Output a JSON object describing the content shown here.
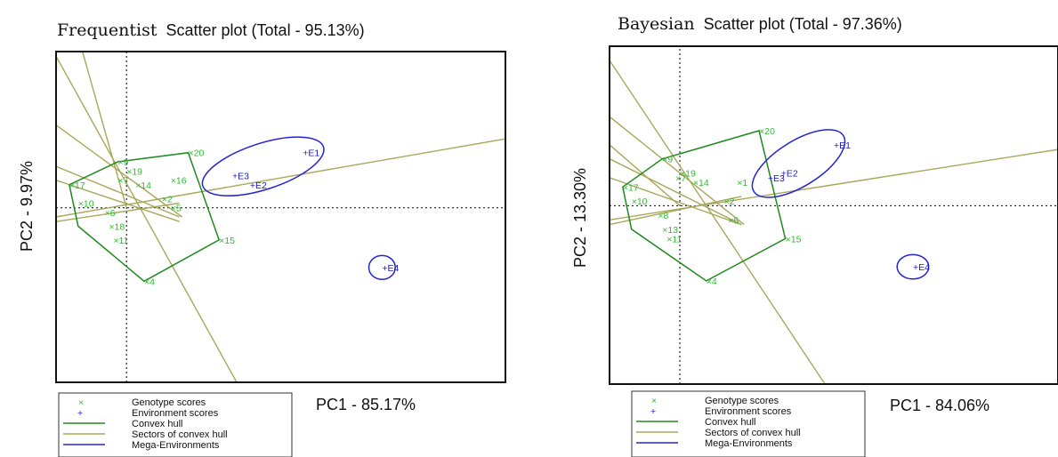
{
  "colors": {
    "genotype": "#2ebd2e",
    "environment": "#1b1bc4",
    "hull": "#1f8a1f",
    "sector": "#a9a85a",
    "mega": "#2323d8",
    "frame": "#111111"
  },
  "chart_data": [
    {
      "type": "scatter",
      "title_main": "Frequentist",
      "title_sub": "Scatter plot (Total - 95.13%)",
      "xlabel": "PC1 - 85.17%",
      "ylabel": "PC2 - 9.97%",
      "xlim": [
        -0.8,
        4.3
      ],
      "ylim": [
        -1.9,
        1.7
      ],
      "grid": false,
      "legend_position": "bottom-left",
      "legend": [
        "Genotype scores",
        "Environment scores",
        "Convex hull",
        "Sectors of convex hull",
        "Mega-Environments"
      ],
      "genotypes": [
        {
          "label": "20",
          "x": 0.7,
          "y": 0.6
        },
        {
          "label": "9",
          "x": -0.1,
          "y": 0.5
        },
        {
          "label": "19",
          "x": 0.0,
          "y": 0.4
        },
        {
          "label": "7",
          "x": -0.1,
          "y": 0.3
        },
        {
          "label": "14",
          "x": 0.1,
          "y": 0.25
        },
        {
          "label": "16",
          "x": 0.5,
          "y": 0.3
        },
        {
          "label": "2",
          "x": 0.4,
          "y": 0.1
        },
        {
          "label": "5",
          "x": 0.5,
          "y": 0.0
        },
        {
          "label": "17",
          "x": -0.65,
          "y": 0.25
        },
        {
          "label": "10",
          "x": -0.55,
          "y": 0.05
        },
        {
          "label": "6",
          "x": -0.25,
          "y": -0.05
        },
        {
          "label": "18",
          "x": -0.2,
          "y": -0.2
        },
        {
          "label": "11",
          "x": -0.15,
          "y": -0.35
        },
        {
          "label": "15",
          "x": 1.05,
          "y": -0.35
        },
        {
          "label": "4",
          "x": 0.2,
          "y": -0.8
        }
      ],
      "environments": [
        {
          "label": "E1",
          "x": 2.0,
          "y": 0.6
        },
        {
          "label": "E3",
          "x": 1.2,
          "y": 0.35
        },
        {
          "label": "E2",
          "x": 1.4,
          "y": 0.25
        },
        {
          "label": "E4",
          "x": 2.9,
          "y": -0.65
        }
      ],
      "hull": [
        [
          0.7,
          0.6
        ],
        [
          1.05,
          -0.35
        ],
        [
          0.2,
          -0.8
        ],
        [
          -0.55,
          -0.2
        ],
        [
          -0.65,
          0.25
        ],
        [
          -0.1,
          0.5
        ]
      ],
      "sectors": [
        [
          [
            -0.8,
            1.65
          ],
          [
            1.25,
            -1.9
          ]
        ],
        [
          [
            -0.8,
            0.9
          ],
          [
            0.63,
            -0.1
          ]
        ],
        [
          [
            -0.8,
            0.45
          ],
          [
            0.6,
            -0.1
          ]
        ],
        [
          [
            -0.8,
            0.3
          ],
          [
            0.6,
            -0.15
          ]
        ],
        [
          [
            -0.8,
            -0.15
          ],
          [
            0.6,
            0.05
          ]
        ],
        [
          [
            -0.8,
            -0.1
          ],
          [
            4.3,
            0.75
          ]
        ],
        [
          [
            -0.5,
            1.7
          ],
          [
            0.0,
            0.0
          ]
        ]
      ],
      "mega_environments": [
        {
          "cx": 1.55,
          "cy": 0.45,
          "rx": 0.72,
          "ry": 0.25,
          "angle_deg": 18
        },
        {
          "cx": 2.9,
          "cy": -0.65,
          "rx": 0.15,
          "ry": 0.13,
          "angle_deg": 0
        }
      ]
    },
    {
      "type": "scatter",
      "title_main": "Bayesian",
      "title_sub": "Scatter plot (Total - 97.36%)",
      "xlabel": "PC1 - 84.06%",
      "ylabel": "PC2 - 13.30%",
      "xlim": [
        -0.8,
        4.3
      ],
      "ylim": [
        -1.9,
        1.7
      ],
      "grid": false,
      "legend_position": "bottom-left",
      "legend": [
        "Genotype scores",
        "Environment scores",
        "Convex hull",
        "Sectors of convex hull",
        "Mega-Environments"
      ],
      "genotypes": [
        {
          "label": "20",
          "x": 0.9,
          "y": 0.8
        },
        {
          "label": "9",
          "x": -0.2,
          "y": 0.5
        },
        {
          "label": "19",
          "x": 0.0,
          "y": 0.35
        },
        {
          "label": "7",
          "x": -0.05,
          "y": 0.3
        },
        {
          "label": "14",
          "x": 0.15,
          "y": 0.25
        },
        {
          "label": "1",
          "x": 0.65,
          "y": 0.25
        },
        {
          "label": "2",
          "x": 0.5,
          "y": 0.05
        },
        {
          "label": "5",
          "x": 0.55,
          "y": -0.15
        },
        {
          "label": "17",
          "x": -0.65,
          "y": 0.2
        },
        {
          "label": "10",
          "x": -0.55,
          "y": 0.05
        },
        {
          "label": "8",
          "x": -0.25,
          "y": -0.1
        },
        {
          "label": "13",
          "x": -0.2,
          "y": -0.25
        },
        {
          "label": "11",
          "x": -0.15,
          "y": -0.35
        },
        {
          "label": "15",
          "x": 1.2,
          "y": -0.35
        },
        {
          "label": "4",
          "x": 0.3,
          "y": -0.8
        }
      ],
      "environments": [
        {
          "label": "E1",
          "x": 1.75,
          "y": 0.65
        },
        {
          "label": "E3",
          "x": 1.0,
          "y": 0.3
        },
        {
          "label": "E2",
          "x": 1.15,
          "y": 0.35
        },
        {
          "label": "E4",
          "x": 2.65,
          "y": -0.65
        }
      ],
      "hull": [
        [
          0.9,
          0.8
        ],
        [
          1.2,
          -0.35
        ],
        [
          0.3,
          -0.8
        ],
        [
          -0.55,
          -0.25
        ],
        [
          -0.65,
          0.2
        ],
        [
          -0.2,
          0.5
        ]
      ],
      "sectors": [
        [
          [
            -0.8,
            1.55
          ],
          [
            1.65,
            -1.9
          ]
        ],
        [
          [
            -0.8,
            0.95
          ],
          [
            0.73,
            -0.2
          ]
        ],
        [
          [
            -0.8,
            0.5
          ],
          [
            0.7,
            -0.2
          ]
        ],
        [
          [
            -0.8,
            0.3
          ],
          [
            0.7,
            -0.2
          ]
        ],
        [
          [
            -0.8,
            -0.2
          ],
          [
            0.7,
            0.1
          ]
        ],
        [
          [
            -0.8,
            -0.15
          ],
          [
            4.3,
            0.6
          ]
        ],
        [
          [
            -0.8,
            0.65
          ],
          [
            0.0,
            0.0
          ]
        ]
      ],
      "mega_environments": [
        {
          "cx": 1.35,
          "cy": 0.45,
          "rx": 0.6,
          "ry": 0.24,
          "angle_deg": 32
        },
        {
          "cx": 2.65,
          "cy": -0.65,
          "rx": 0.18,
          "ry": 0.13,
          "angle_deg": 0
        }
      ]
    }
  ]
}
